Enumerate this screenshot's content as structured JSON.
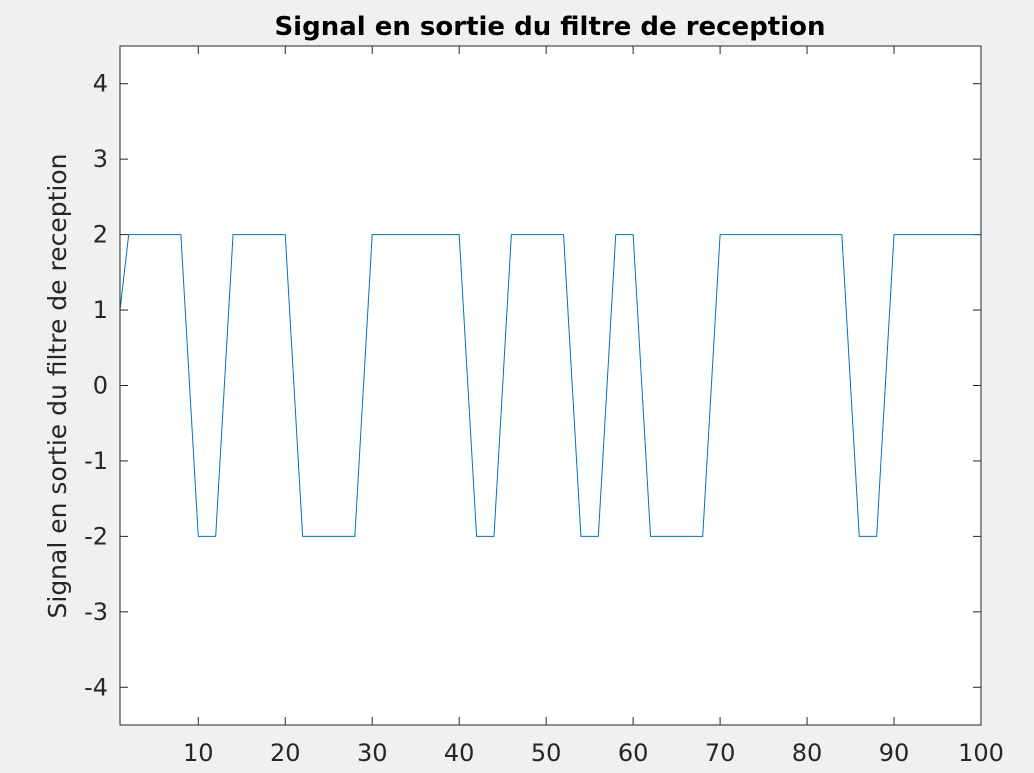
{
  "chart_data": {
    "type": "line",
    "title": "Signal en sortie du filtre de reception",
    "xlabel": "",
    "ylabel": "Signal en sortie du filtre de reception",
    "xlim": [
      1,
      100
    ],
    "ylim": [
      -4.5,
      4.5
    ],
    "x_ticks": [
      10,
      20,
      30,
      40,
      50,
      60,
      70,
      80,
      90,
      100
    ],
    "y_ticks": [
      4,
      3,
      2,
      1,
      0,
      -1,
      -2,
      -3,
      -4
    ],
    "grid": false,
    "line_color": "#0072bd",
    "series": [
      {
        "x": [
          1,
          2,
          3,
          4,
          5,
          6,
          7,
          8,
          9,
          10,
          11,
          12,
          13,
          14,
          15,
          16,
          17,
          18,
          19,
          20,
          21,
          22,
          23,
          24,
          25,
          26,
          27,
          28,
          29,
          30,
          31,
          32,
          33,
          34,
          35,
          36,
          37,
          38,
          39,
          40,
          41,
          42,
          43,
          44,
          45,
          46,
          47,
          48,
          49,
          50,
          51,
          52,
          53,
          54,
          55,
          56,
          57,
          58,
          59,
          60,
          61,
          62,
          63,
          64,
          65,
          66,
          67,
          68,
          69,
          70,
          71,
          72,
          73,
          74,
          75,
          76,
          77,
          78,
          79,
          80,
          81,
          82,
          83,
          84,
          85,
          86,
          87,
          88,
          89,
          90,
          91,
          92,
          93,
          94,
          95,
          96,
          97,
          98,
          99,
          100
        ],
        "values": [
          1,
          2,
          2,
          2,
          2,
          2,
          2,
          2,
          0,
          -2,
          -2,
          -2,
          0,
          2,
          2,
          2,
          2,
          2,
          2,
          2,
          0,
          -2,
          -2,
          -2,
          -2,
          -2,
          -2,
          -2,
          0,
          2,
          2,
          2,
          2,
          2,
          2,
          2,
          2,
          2,
          2,
          2,
          0,
          -2,
          -2,
          -2,
          0,
          2,
          2,
          2,
          2,
          2,
          2,
          2,
          0,
          -2,
          -2,
          -2,
          0,
          2,
          2,
          2,
          0,
          -2,
          -2,
          -2,
          -2,
          -2,
          -2,
          -2,
          0,
          2,
          2,
          2,
          2,
          2,
          2,
          2,
          2,
          2,
          2,
          2,
          2,
          2,
          2,
          2,
          0,
          -2,
          -2,
          -2,
          0,
          2,
          2,
          2,
          2,
          2,
          2,
          2,
          2,
          2,
          2,
          2
        ]
      }
    ]
  }
}
